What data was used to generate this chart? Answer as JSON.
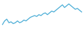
{
  "values": [
    3,
    7,
    9,
    5,
    6,
    4,
    5,
    7,
    5,
    6,
    8,
    7,
    9,
    11,
    12,
    13,
    12,
    14,
    13,
    15,
    16,
    14,
    16,
    18,
    17,
    19,
    21,
    23,
    25,
    22,
    24,
    26,
    24,
    22,
    20,
    21,
    19,
    17
  ],
  "line_color": "#4aadd6",
  "background_color": "#ffffff",
  "linewidth": 0.9
}
